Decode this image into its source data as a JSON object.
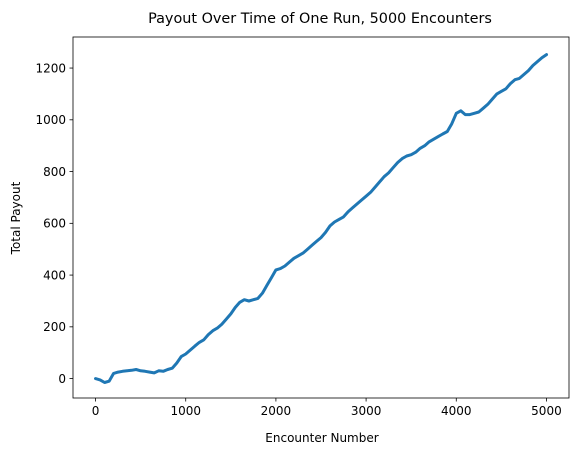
{
  "chart_data": {
    "type": "line",
    "title": "Payout Over Time of One Run, 5000 Encounters",
    "xlabel": "Encounter Number",
    "ylabel": "Total Payout",
    "xlim": [
      -250,
      5250
    ],
    "ylim": [
      -75,
      1320
    ],
    "grid": false,
    "legend": "none",
    "line_color": "#1f77b4",
    "x_ticks": [
      0,
      1000,
      2000,
      3000,
      4000,
      5000
    ],
    "y_ticks": [
      0,
      200,
      400,
      600,
      800,
      1000,
      1200
    ],
    "series": [
      {
        "x": [
          0,
          50,
          100,
          150,
          200,
          250,
          300,
          350,
          400,
          450,
          500,
          550,
          600,
          650,
          700,
          750,
          800,
          850,
          900,
          950,
          1000,
          1050,
          1100,
          1150,
          1200,
          1250,
          1300,
          1350,
          1400,
          1450,
          1500,
          1550,
          1600,
          1650,
          1700,
          1750,
          1800,
          1850,
          1900,
          1950,
          2000,
          2050,
          2100,
          2150,
          2200,
          2250,
          2300,
          2350,
          2400,
          2450,
          2500,
          2550,
          2600,
          2650,
          2700,
          2750,
          2800,
          2850,
          2900,
          2950,
          3000,
          3050,
          3100,
          3150,
          3200,
          3250,
          3300,
          3350,
          3400,
          3450,
          3500,
          3550,
          3600,
          3650,
          3700,
          3750,
          3800,
          3850,
          3900,
          3950,
          4000,
          4050,
          4100,
          4150,
          4200,
          4250,
          4300,
          4350,
          4400,
          4450,
          4500,
          4550,
          4600,
          4650,
          4700,
          4750,
          4800,
          4850,
          4900,
          4950,
          5000
        ],
        "y": [
          0,
          -5,
          -15,
          -10,
          20,
          25,
          28,
          30,
          32,
          35,
          30,
          28,
          25,
          22,
          30,
          28,
          35,
          40,
          60,
          85,
          95,
          110,
          125,
          140,
          150,
          170,
          185,
          195,
          210,
          230,
          250,
          275,
          295,
          305,
          300,
          305,
          310,
          330,
          360,
          390,
          420,
          425,
          435,
          450,
          465,
          475,
          485,
          500,
          515,
          530,
          545,
          565,
          590,
          605,
          615,
          625,
          645,
          660,
          675,
          690,
          705,
          720,
          740,
          760,
          780,
          795,
          815,
          835,
          850,
          860,
          865,
          875,
          890,
          900,
          915,
          925,
          935,
          945,
          955,
          985,
          1025,
          1035,
          1020,
          1020,
          1025,
          1030,
          1045,
          1060,
          1080,
          1100,
          1110,
          1120,
          1140,
          1155,
          1160,
          1175,
          1190,
          1210,
          1225,
          1240,
          1252
        ]
      }
    ]
  }
}
